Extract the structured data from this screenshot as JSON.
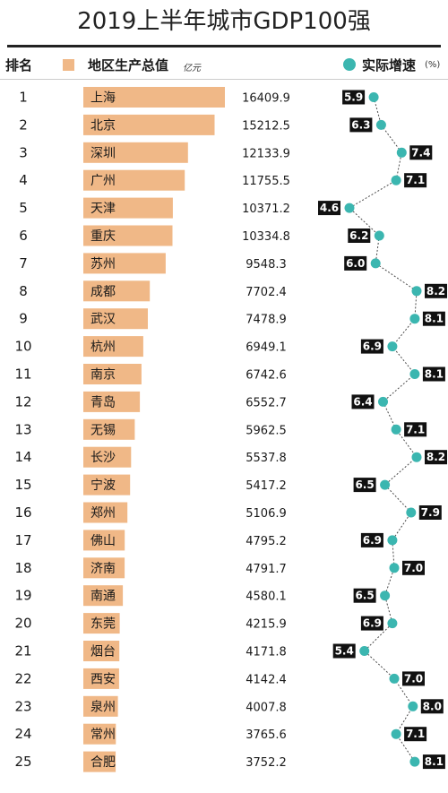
{
  "title": "2019上半年城市GDP100强",
  "legend": {
    "rank_label": "排名",
    "gdp_label": "地区生产总值",
    "gdp_unit": "亿元",
    "growth_label": "实际增速",
    "growth_unit": "(%)"
  },
  "colors": {
    "bar": "#f0b887",
    "dot": "#3bb6b0",
    "label_bg": "#111111",
    "connector": "#4a4a4a"
  },
  "chart_data": {
    "type": "bar",
    "orientation": "horizontal",
    "categories": [
      "上海",
      "北京",
      "深圳",
      "广州",
      "天津",
      "重庆",
      "苏州",
      "成都",
      "武汉",
      "杭州",
      "南京",
      "青岛",
      "无锡",
      "长沙",
      "宁波",
      "郑州",
      "佛山",
      "济南",
      "南通",
      "东莞",
      "烟台",
      "西安",
      "泉州",
      "常州",
      "合肥"
    ],
    "ranks": [
      1,
      2,
      3,
      4,
      5,
      6,
      7,
      8,
      9,
      10,
      11,
      12,
      13,
      14,
      15,
      16,
      17,
      18,
      19,
      20,
      21,
      22,
      23,
      24,
      25
    ],
    "series": [
      {
        "name": "地区生产总值",
        "unit": "亿元",
        "values": [
          16409.9,
          15212.5,
          12133.9,
          11755.5,
          10371.2,
          10334.8,
          9548.3,
          7702.4,
          7478.9,
          6949.1,
          6742.6,
          6552.7,
          5962.5,
          5537.8,
          5417.2,
          5106.9,
          4795.2,
          4791.7,
          4580.1,
          4215.9,
          4171.8,
          4142.4,
          4007.8,
          3765.6,
          3752.2
        ]
      },
      {
        "name": "实际增速",
        "unit": "%",
        "type": "line",
        "values": [
          5.9,
          6.3,
          7.4,
          7.1,
          4.6,
          6.2,
          6.0,
          8.2,
          8.1,
          6.9,
          8.1,
          6.4,
          7.1,
          8.2,
          6.5,
          7.9,
          6.9,
          7.0,
          6.5,
          6.9,
          5.4,
          7.0,
          8.0,
          7.1,
          8.1
        ]
      }
    ],
    "labels": {
      "gdp": [
        "16409.9",
        "15212.5",
        "12133.9",
        "11755.5",
        "10371.2",
        "10334.8",
        "9548.3",
        "7702.4",
        "7478.9",
        "6949.1",
        "6742.6",
        "6552.7",
        "5962.5",
        "5537.8",
        "5417.2",
        "5106.9",
        "4795.2",
        "4791.7",
        "4580.1",
        "4215.9",
        "4171.8",
        "4142.4",
        "4007.8",
        "3765.6",
        "3752.2"
      ],
      "growth": [
        "5.9",
        "6.3",
        "7.4",
        "7.1",
        "4.6",
        "6.2",
        "6.0",
        "8.2",
        "8.1",
        "6.9",
        "8.1",
        "6.4",
        "7.1",
        "8.2",
        "6.5",
        "7.9",
        "6.9",
        "7.0",
        "6.5",
        "6.9",
        "5.4",
        "7.0",
        "8.0",
        "7.1",
        "8.1"
      ]
    },
    "growth_label_side": [
      "left",
      "left",
      "right",
      "right",
      "left",
      "left",
      "left",
      "right",
      "right",
      "left",
      "right",
      "left",
      "right",
      "right",
      "left",
      "right",
      "left",
      "right",
      "left",
      "left",
      "left",
      "right",
      "right",
      "right",
      "right"
    ],
    "grid": false,
    "legend_position": "top"
  }
}
